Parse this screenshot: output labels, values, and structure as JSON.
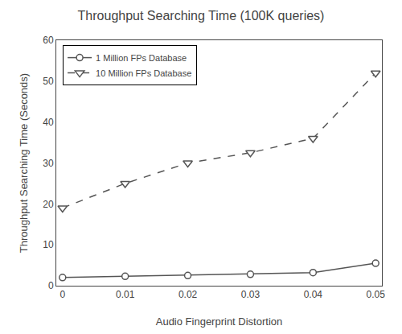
{
  "chart_data": {
    "type": "line",
    "title": "Throughput Searching Time (100K queries)",
    "xlabel": "Audio Fingerprint Distortion",
    "ylabel": "Throughput Searching Time (Seconds)",
    "x": [
      0,
      0.01,
      0.02,
      0.03,
      0.04,
      0.05
    ],
    "series": [
      {
        "name": "1 Million FPs Database",
        "color": "#555555",
        "marker": "circle",
        "line_style": "solid",
        "values": [
          2.0,
          2.3,
          2.5,
          2.8,
          3.2,
          5.5
        ]
      },
      {
        "name": "10 Million FPs Database",
        "color": "#555555",
        "marker": "triangle-down",
        "line_style": "dashed",
        "values": [
          19.0,
          25.0,
          30.0,
          32.5,
          36.0,
          52.0
        ]
      }
    ],
    "xlim": [
      -0.001,
      0.051
    ],
    "xticks": [
      0,
      0.01,
      0.02,
      0.03,
      0.04,
      0.05
    ],
    "ylim": [
      0,
      60
    ],
    "yticks": [
      0,
      10,
      20,
      30,
      40,
      50,
      60
    ],
    "grid": false,
    "legend": "upper left"
  }
}
